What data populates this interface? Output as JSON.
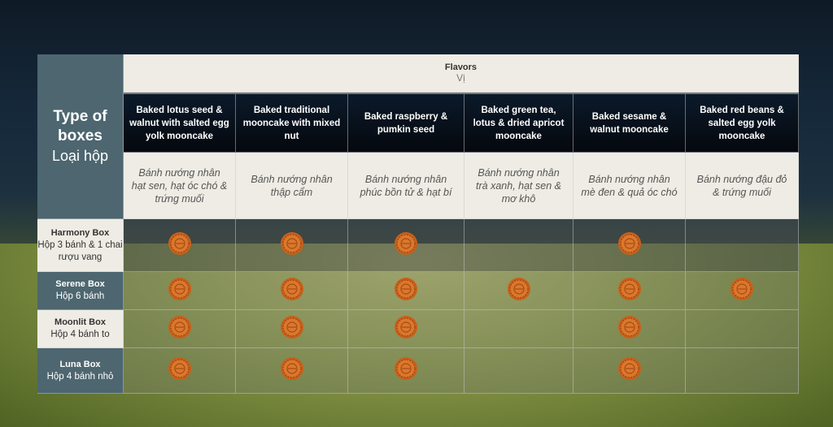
{
  "corner": {
    "title": "Type of boxes",
    "subtitle": "Loại hộp"
  },
  "flavors_header": {
    "title": "Flavors",
    "subtitle": "Vị"
  },
  "flavors": [
    {
      "en": "Baked lotus seed & walnut with salted egg yolk mooncake",
      "vi": "Bánh nướng nhân hạt sen, hạt óc chó & trứng muối"
    },
    {
      "en": "Baked traditional mooncake with mixed nut",
      "vi": "Bánh nướng nhân thập cẩm"
    },
    {
      "en": "Baked raspberry & pumkin seed",
      "vi": "Bánh nướng nhân phúc bồn tử & hạt bí"
    },
    {
      "en": "Baked green tea, lotus & dried apricot mooncake",
      "vi": "Bánh nướng nhân trà xanh, hạt sen & mơ khô"
    },
    {
      "en": "Baked sesame & walnut mooncake",
      "vi": "Bánh nướng nhân mè đen & quả óc chó"
    },
    {
      "en": "Baked red beans & salted egg yolk mooncake",
      "vi": "Bánh nướng đậu đỏ & trứng muối"
    }
  ],
  "boxes": [
    {
      "name": "Harmony Box",
      "desc": "Hộp 3 bánh & 1 chai rượu vang",
      "includes": [
        true,
        true,
        true,
        false,
        true,
        false
      ]
    },
    {
      "name": "Serene Box",
      "desc": "Hộp 6 bánh",
      "includes": [
        true,
        true,
        true,
        true,
        true,
        true
      ]
    },
    {
      "name": "Moonlit Box",
      "desc": "Hộp 4 bánh to",
      "includes": [
        true,
        true,
        true,
        false,
        true,
        false
      ]
    },
    {
      "name": "Luna Box",
      "desc": "Hộp 4 bánh nhỏ",
      "includes": [
        true,
        true,
        true,
        false,
        true,
        false
      ]
    }
  ],
  "icon": "mooncake-icon",
  "colors": {
    "header_dark": "#0b1a2a",
    "side": "#4d6670",
    "light": "#eeece4",
    "mooncake": "#d2691e"
  }
}
